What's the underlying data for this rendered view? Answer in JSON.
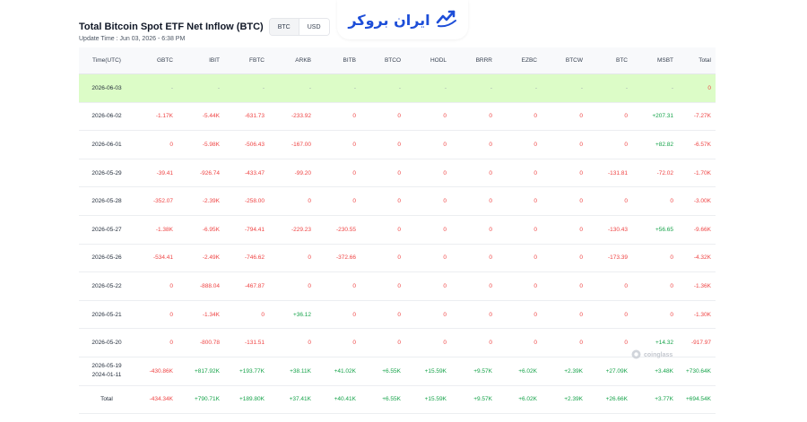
{
  "header": {
    "title": "Total Bitcoin Spot ETF Net Inflow (BTC)",
    "units": [
      "BTC",
      "USD"
    ],
    "update_time": "Update Time : Jun 03, 2026 - 6:38 PM"
  },
  "logo": {
    "text": "ایران بروکر"
  },
  "watermark": {
    "text": "coinglass"
  },
  "table": {
    "columns": [
      "Time(UTC)",
      "GBTC",
      "IBIT",
      "FBTC",
      "ARKB",
      "BITB",
      "BTCO",
      "HODL",
      "BRRR",
      "EZBC",
      "BTCW",
      "BTC",
      "MSBT",
      "Total"
    ],
    "rows": [
      {
        "date": "2026-06-03",
        "today": true,
        "cells": [
          "-",
          "-",
          "-",
          "-",
          "-",
          "-",
          "-",
          "-",
          "-",
          "-",
          "-",
          "-",
          "0"
        ]
      },
      {
        "date": "2026-06-02",
        "cells": [
          "-1.17K",
          "-5.44K",
          "-631.73",
          "-233.92",
          "0",
          "0",
          "0",
          "0",
          "0",
          "0",
          "0",
          "+207.31",
          "-7.27K"
        ]
      },
      {
        "date": "2026-06-01",
        "cells": [
          "0",
          "-5.98K",
          "-506.43",
          "-167.00",
          "0",
          "0",
          "0",
          "0",
          "0",
          "0",
          "0",
          "+82.82",
          "-6.57K"
        ]
      },
      {
        "date": "2026-05-29",
        "cells": [
          "-39.41",
          "-926.74",
          "-433.47",
          "-99.20",
          "0",
          "0",
          "0",
          "0",
          "0",
          "0",
          "-131.81",
          "-72.02",
          "-1.70K"
        ]
      },
      {
        "date": "2026-05-28",
        "cells": [
          "-352.07",
          "-2.39K",
          "-258.00",
          "0",
          "0",
          "0",
          "0",
          "0",
          "0",
          "0",
          "0",
          "0",
          "-3.00K"
        ]
      },
      {
        "date": "2026-05-27",
        "cells": [
          "-1.38K",
          "-6.95K",
          "-794.41",
          "-229.23",
          "-230.55",
          "0",
          "0",
          "0",
          "0",
          "0",
          "-130.43",
          "+56.65",
          "-9.66K"
        ]
      },
      {
        "date": "2026-05-26",
        "cells": [
          "-534.41",
          "-2.49K",
          "-746.62",
          "0",
          "-372.66",
          "0",
          "0",
          "0",
          "0",
          "0",
          "-173.39",
          "0",
          "-4.32K"
        ]
      },
      {
        "date": "2026-05-22",
        "cells": [
          "0",
          "-888.04",
          "-467.87",
          "0",
          "0",
          "0",
          "0",
          "0",
          "0",
          "0",
          "0",
          "0",
          "-1.36K"
        ]
      },
      {
        "date": "2026-05-21",
        "cells": [
          "0",
          "-1.34K",
          "0",
          "+36.12",
          "0",
          "0",
          "0",
          "0",
          "0",
          "0",
          "0",
          "0",
          "-1.30K"
        ]
      },
      {
        "date": "2026-05-20",
        "cells": [
          "0",
          "-800.78",
          "-131.51",
          "0",
          "0",
          "0",
          "0",
          "0",
          "0",
          "0",
          "0",
          "+14.32",
          "-917.97"
        ]
      },
      {
        "date": "2026-05-19",
        "date2": "2024-01-11",
        "cells": [
          "-430.86K",
          "+817.92K",
          "+193.77K",
          "+38.11K",
          "+41.02K",
          "+6.55K",
          "+15.59K",
          "+9.57K",
          "+6.02K",
          "+2.39K",
          "+27.09K",
          "+3.48K",
          "+730.64K"
        ]
      },
      {
        "date": "Total",
        "cells": [
          "-434.34K",
          "+790.71K",
          "+189.80K",
          "+37.41K",
          "+40.41K",
          "+6.55K",
          "+15.59K",
          "+9.57K",
          "+6.02K",
          "+2.39K",
          "+26.66K",
          "+3.77K",
          "+694.54K"
        ]
      }
    ]
  },
  "colors": {
    "positive": "#16a34a",
    "negative": "#ef4444",
    "today_row": "#dcfcc7",
    "header_bg": "#f8f9fb",
    "brand": "#1d4ed8"
  }
}
